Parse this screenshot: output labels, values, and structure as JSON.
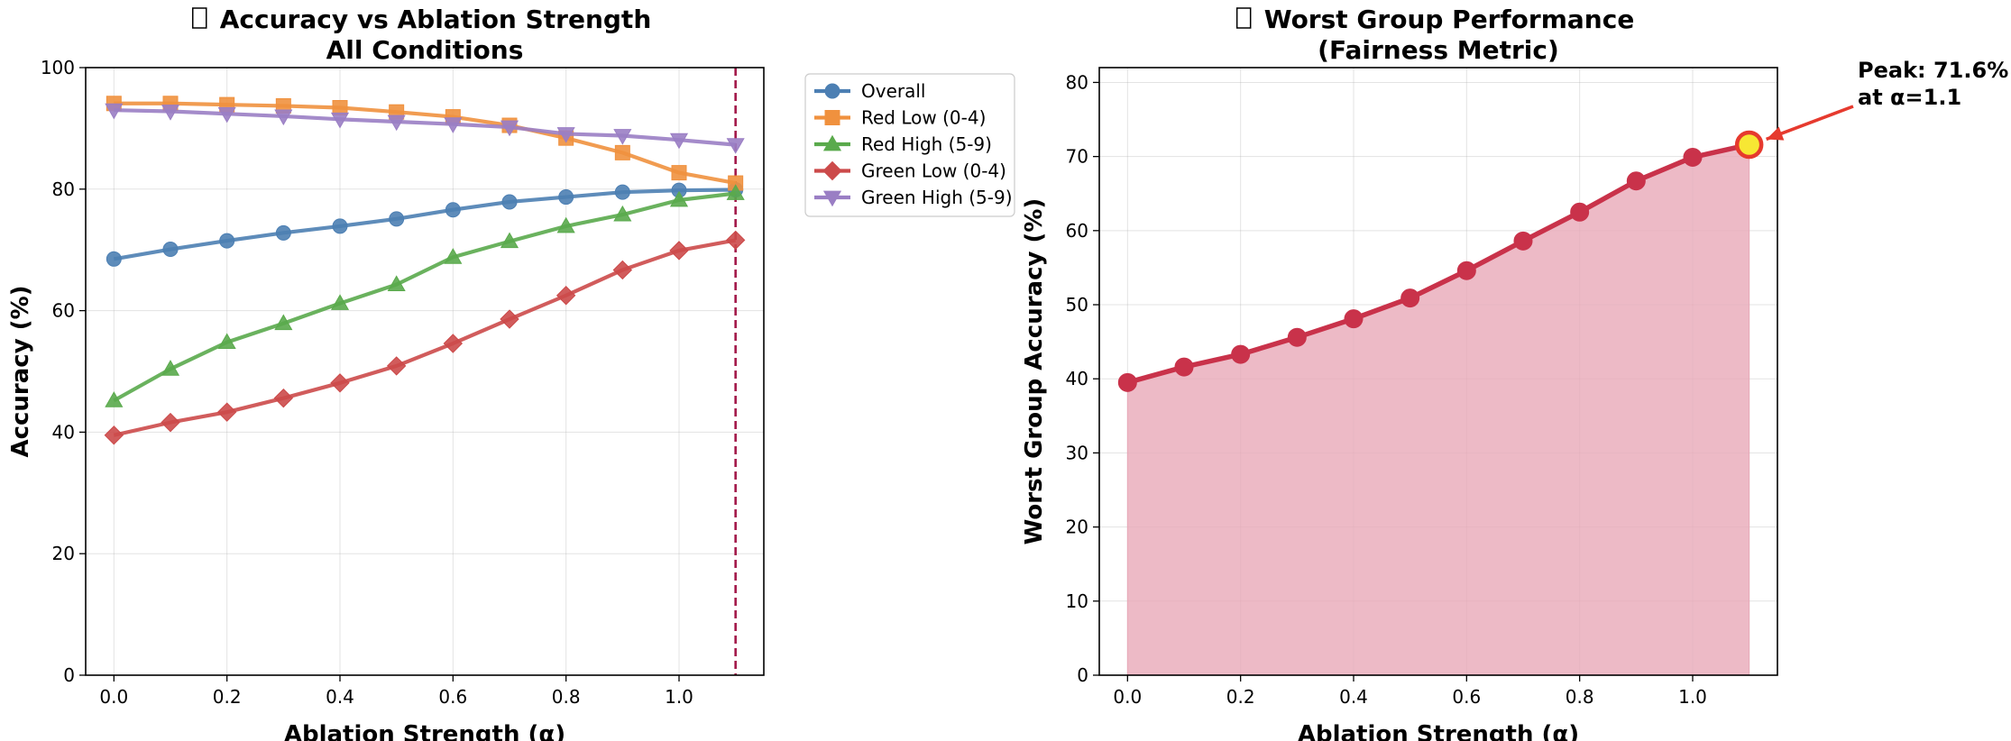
{
  "chart_data": [
    {
      "type": "line",
      "title_line1": "Accuracy vs Ablation Strength",
      "title_line2": "All Conditions",
      "title_icon": "missing-glyph-icon",
      "xlabel": "Ablation Strength (α)",
      "ylabel": "Accuracy (%)",
      "xlim": [
        -0.05,
        1.15
      ],
      "ylim": [
        0,
        100
      ],
      "xticks": [
        0.0,
        0.2,
        0.4,
        0.6,
        0.8,
        1.0
      ],
      "xtick_labels": [
        "0.0",
        "0.2",
        "0.4",
        "0.6",
        "0.8",
        "1.0"
      ],
      "yticks": [
        0,
        20,
        40,
        60,
        80,
        100
      ],
      "ytick_labels": [
        "0",
        "20",
        "40",
        "60",
        "80",
        "100"
      ],
      "grid": true,
      "legend_position": "outside-right-top",
      "x": [
        0.0,
        0.1,
        0.2,
        0.3,
        0.4,
        0.5,
        0.6,
        0.7,
        0.8,
        0.9,
        1.0,
        1.1
      ],
      "vline": {
        "x": 1.1,
        "color": "#a3194a",
        "style": "dashed"
      },
      "series": [
        {
          "name": "Overall",
          "color": "#4c7fb3",
          "marker": "circle",
          "values": [
            68.5,
            70.1,
            71.5,
            72.8,
            73.9,
            75.1,
            76.6,
            77.9,
            78.7,
            79.5,
            79.8,
            79.9
          ]
        },
        {
          "name": "Red Low (0-4)",
          "color": "#f0913e",
          "marker": "square",
          "values": [
            94.1,
            94.1,
            93.9,
            93.7,
            93.4,
            92.7,
            91.9,
            90.5,
            88.4,
            86.0,
            82.7,
            81.0
          ]
        },
        {
          "name": "Red High (5-9)",
          "color": "#5aaa4c",
          "marker": "triangle-up",
          "values": [
            45.2,
            50.4,
            54.8,
            57.9,
            61.2,
            64.3,
            68.8,
            71.4,
            73.9,
            75.8,
            78.2,
            79.3
          ]
        },
        {
          "name": "Green Low (0-4)",
          "color": "#cc4a4a",
          "marker": "diamond",
          "values": [
            39.5,
            41.6,
            43.3,
            45.6,
            48.1,
            50.9,
            54.6,
            58.6,
            62.5,
            66.7,
            69.9,
            71.6
          ]
        },
        {
          "name": "Green High (5-9)",
          "color": "#9a7ec4",
          "marker": "triangle-down",
          "values": [
            93.0,
            92.8,
            92.4,
            92.0,
            91.5,
            91.1,
            90.7,
            90.2,
            89.1,
            88.8,
            88.1,
            87.3
          ]
        }
      ]
    },
    {
      "type": "area",
      "title_line1": "Worst Group Performance",
      "title_line2": "(Fairness Metric)",
      "title_icon": "missing-glyph-icon",
      "xlabel": "Ablation Strength (α)",
      "ylabel": "Worst Group Accuracy (%)",
      "xlim": [
        -0.05,
        1.15
      ],
      "ylim": [
        0,
        82
      ],
      "xticks": [
        0.0,
        0.2,
        0.4,
        0.6,
        0.8,
        1.0
      ],
      "xtick_labels": [
        "0.0",
        "0.2",
        "0.4",
        "0.6",
        "0.8",
        "1.0"
      ],
      "yticks": [
        0,
        10,
        20,
        30,
        40,
        50,
        60,
        70,
        80
      ],
      "ytick_labels": [
        "0",
        "10",
        "20",
        "30",
        "40",
        "50",
        "60",
        "70",
        "80"
      ],
      "grid": true,
      "x": [
        0.0,
        0.1,
        0.2,
        0.3,
        0.4,
        0.5,
        0.6,
        0.7,
        0.8,
        0.9,
        1.0,
        1.1
      ],
      "series": [
        {
          "name": "",
          "color": "#c9324a",
          "fill_color": "#e8a9b8",
          "marker": "circle",
          "values": [
            39.5,
            41.6,
            43.3,
            45.6,
            48.1,
            50.9,
            54.6,
            58.6,
            62.5,
            66.7,
            69.9,
            71.6
          ]
        }
      ],
      "peak": {
        "x": 1.1,
        "y": 71.6,
        "marker_fill": "#f7e733",
        "marker_edge": "#e63a2e",
        "arrow_color": "#e63a2e",
        "label_line1": "Peak: 71.6%",
        "label_line2": "at α=1.1"
      }
    }
  ]
}
